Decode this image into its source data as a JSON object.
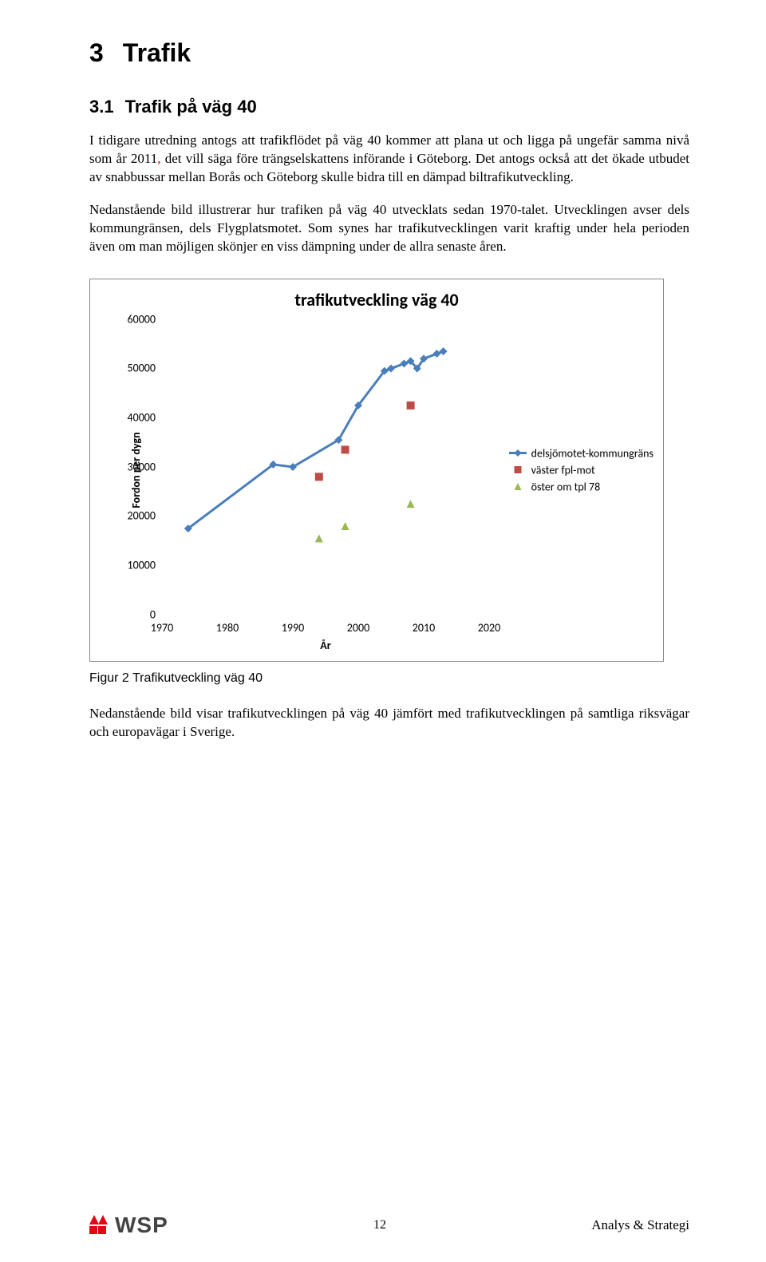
{
  "section": {
    "number": "3",
    "title": "Trafik"
  },
  "subsection": {
    "number": "3.1",
    "title": "Trafik på väg 40"
  },
  "para1a": "I tidigare utredning antogs att trafikflödet på väg 40 kommer att plana ut och ligga på ungefär samma nivå som år 2011",
  "para1b": " det vill säga före trängselskattens införande i Göteborg. Det antogs också att det ökade utbudet av snabbussar mellan Borås och Göteborg skulle bidra till en dämpad biltrafikutveckling.",
  "para2": "Nedanstående bild illustrerar hur trafiken på väg 40 utvecklats sedan 1970-talet. Utvecklingen avser dels kommungränsen, dels Flygplatsmotet. Som synes har trafikutvecklingen varit kraftig under hela perioden även om man möjligen skönjer en viss dämpning under de allra senaste åren.",
  "chart": {
    "title": "trafikutveckling väg 40",
    "x_label": "År",
    "y_label": "Fordon per dygn",
    "xlim": [
      1970,
      2020
    ],
    "ylim": [
      0,
      60000
    ],
    "x_ticks": [
      1970,
      1980,
      1990,
      2000,
      2010,
      2020
    ],
    "y_ticks": [
      0,
      10000,
      20000,
      30000,
      40000,
      50000,
      60000
    ],
    "title_fontsize": 22,
    "label_fontsize": 14,
    "tick_fontsize": 14,
    "background_color": "#ffffff",
    "border_color": "#888888",
    "legend_position": "right",
    "series": [
      {
        "name": "delsjömotet-kommungräns",
        "color": "#4a7ebb",
        "marker": "diamond",
        "line": true,
        "line_width": 3,
        "marker_size": 10,
        "points": [
          [
            1974,
            17500
          ],
          [
            1987,
            30500
          ],
          [
            1990,
            30000
          ],
          [
            1997,
            35500
          ],
          [
            2000,
            42500
          ],
          [
            2004,
            49500
          ],
          [
            2005,
            50000
          ],
          [
            2007,
            51000
          ],
          [
            2008,
            51500
          ],
          [
            2009,
            50000
          ],
          [
            2010,
            52000
          ],
          [
            2012,
            53000
          ],
          [
            2013,
            53500
          ]
        ]
      },
      {
        "name": "väster fpl-mot",
        "color": "#be4b48",
        "marker": "square",
        "line": false,
        "marker_size": 10,
        "points": [
          [
            1994,
            28000
          ],
          [
            1998,
            33500
          ],
          [
            2008,
            42500
          ]
        ]
      },
      {
        "name": "öster om tpl 78",
        "color": "#98b954",
        "marker": "triangle",
        "line": false,
        "marker_size": 10,
        "points": [
          [
            1994,
            15500
          ],
          [
            1998,
            18000
          ],
          [
            2008,
            22500
          ]
        ]
      }
    ]
  },
  "figure_caption": "Figur 2 Trafikutveckling väg 40",
  "para3": "Nedanstående bild visar trafikutvecklingen på väg 40 jämfört med trafikutvecklingen på samtliga riksvägar och europavägar i Sverige.",
  "footer": {
    "logo_text": "WSP",
    "page_number": "12",
    "right_text": "Analys & Strategi"
  },
  "logo_colors": {
    "red": "#e30613",
    "dark": "#3b3b3b"
  }
}
